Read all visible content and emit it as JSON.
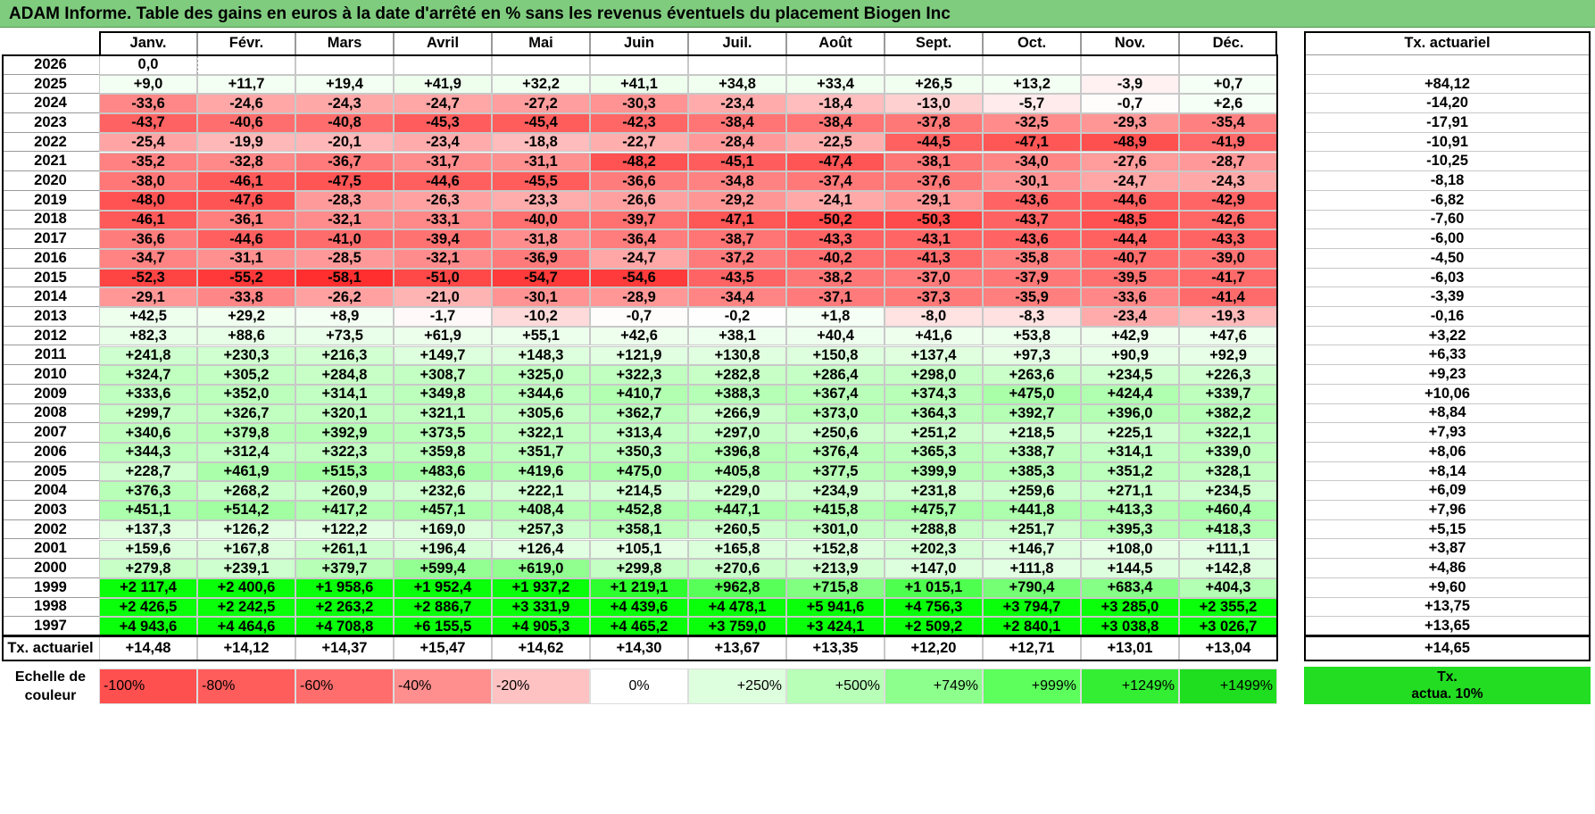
{
  "title": "ADAM Informe. Table des gains en euros à la date d'arrêté en % sans les revenus éventuels du placement Biogen Inc",
  "months": [
    "Janv.",
    "Févr.",
    "Mars",
    "Avril",
    "Mai",
    "Juin",
    "Juil.",
    "Août",
    "Sept.",
    "Oct.",
    "Nov.",
    "Déc."
  ],
  "rate_header": "Tx. actuariel",
  "rows": [
    {
      "year": "2026",
      "values": [
        "0,0",
        "",
        "",
        "",
        "",
        "",
        "",
        "",
        "",
        "",
        "",
        ""
      ],
      "rate": ""
    },
    {
      "year": "2025",
      "values": [
        "+9,0",
        "+11,7",
        "+19,4",
        "+41,9",
        "+32,2",
        "+41,1",
        "+34,8",
        "+33,4",
        "+26,5",
        "+13,2",
        "-3,9",
        "+0,7"
      ],
      "rate": "+84,12"
    },
    {
      "year": "2024",
      "values": [
        "-33,6",
        "-24,6",
        "-24,3",
        "-24,7",
        "-27,2",
        "-30,3",
        "-23,4",
        "-18,4",
        "-13,0",
        "-5,7",
        "-0,7",
        "+2,6"
      ],
      "rate": "-14,20"
    },
    {
      "year": "2023",
      "values": [
        "-43,7",
        "-40,6",
        "-40,8",
        "-45,3",
        "-45,4",
        "-42,3",
        "-38,4",
        "-38,4",
        "-37,8",
        "-32,5",
        "-29,3",
        "-35,4"
      ],
      "rate": "-17,91"
    },
    {
      "year": "2022",
      "values": [
        "-25,4",
        "-19,9",
        "-20,1",
        "-23,4",
        "-18,8",
        "-22,7",
        "-28,4",
        "-22,5",
        "-44,5",
        "-47,1",
        "-48,9",
        "-41,9"
      ],
      "rate": "-10,91"
    },
    {
      "year": "2021",
      "values": [
        "-35,2",
        "-32,8",
        "-36,7",
        "-31,7",
        "-31,1",
        "-48,2",
        "-45,1",
        "-47,4",
        "-38,1",
        "-34,0",
        "-27,6",
        "-28,7"
      ],
      "rate": "-10,25"
    },
    {
      "year": "2020",
      "values": [
        "-38,0",
        "-46,1",
        "-47,5",
        "-44,6",
        "-45,5",
        "-36,6",
        "-34,8",
        "-37,4",
        "-37,6",
        "-30,1",
        "-24,7",
        "-24,3"
      ],
      "rate": "-8,18"
    },
    {
      "year": "2019",
      "values": [
        "-48,0",
        "-47,6",
        "-28,3",
        "-26,3",
        "-23,3",
        "-26,6",
        "-29,2",
        "-24,1",
        "-29,1",
        "-43,6",
        "-44,6",
        "-42,9"
      ],
      "rate": "-6,82"
    },
    {
      "year": "2018",
      "values": [
        "-46,1",
        "-36,1",
        "-32,1",
        "-33,1",
        "-40,0",
        "-39,7",
        "-47,1",
        "-50,2",
        "-50,3",
        "-43,7",
        "-48,5",
        "-42,6"
      ],
      "rate": "-7,60"
    },
    {
      "year": "2017",
      "values": [
        "-36,6",
        "-44,6",
        "-41,0",
        "-39,4",
        "-31,8",
        "-36,4",
        "-38,7",
        "-43,3",
        "-43,1",
        "-43,6",
        "-44,4",
        "-43,3"
      ],
      "rate": "-6,00"
    },
    {
      "year": "2016",
      "values": [
        "-34,7",
        "-31,1",
        "-28,5",
        "-32,1",
        "-36,9",
        "-24,7",
        "-37,2",
        "-40,2",
        "-41,3",
        "-35,8",
        "-40,7",
        "-39,0"
      ],
      "rate": "-4,50"
    },
    {
      "year": "2015",
      "values": [
        "-52,3",
        "-55,2",
        "-58,1",
        "-51,0",
        "-54,7",
        "-54,6",
        "-43,5",
        "-38,2",
        "-37,0",
        "-37,9",
        "-39,5",
        "-41,7"
      ],
      "rate": "-6,03"
    },
    {
      "year": "2014",
      "values": [
        "-29,1",
        "-33,8",
        "-26,2",
        "-21,0",
        "-30,1",
        "-28,9",
        "-34,4",
        "-37,1",
        "-37,3",
        "-35,9",
        "-33,6",
        "-41,4"
      ],
      "rate": "-3,39"
    },
    {
      "year": "2013",
      "values": [
        "+42,5",
        "+29,2",
        "+8,9",
        "-1,7",
        "-10,2",
        "-0,7",
        "-0,2",
        "+1,8",
        "-8,0",
        "-8,3",
        "-23,4",
        "-19,3"
      ],
      "rate": "-0,16"
    },
    {
      "year": "2012",
      "values": [
        "+82,3",
        "+88,6",
        "+73,5",
        "+61,9",
        "+55,1",
        "+42,6",
        "+38,1",
        "+40,4",
        "+41,6",
        "+53,8",
        "+42,9",
        "+47,6"
      ],
      "rate": "+3,22"
    },
    {
      "year": "2011",
      "values": [
        "+241,8",
        "+230,3",
        "+216,3",
        "+149,7",
        "+148,3",
        "+121,9",
        "+130,8",
        "+150,8",
        "+137,4",
        "+97,3",
        "+90,9",
        "+92,9"
      ],
      "rate": "+6,33"
    },
    {
      "year": "2010",
      "values": [
        "+324,7",
        "+305,2",
        "+284,8",
        "+308,7",
        "+325,0",
        "+322,3",
        "+282,8",
        "+286,4",
        "+298,0",
        "+263,6",
        "+234,5",
        "+226,3"
      ],
      "rate": "+9,23"
    },
    {
      "year": "2009",
      "values": [
        "+333,6",
        "+352,0",
        "+314,1",
        "+349,8",
        "+344,6",
        "+410,7",
        "+388,3",
        "+367,4",
        "+374,3",
        "+475,0",
        "+424,4",
        "+339,7"
      ],
      "rate": "+10,06"
    },
    {
      "year": "2008",
      "values": [
        "+299,7",
        "+326,7",
        "+320,1",
        "+321,1",
        "+305,6",
        "+362,7",
        "+266,9",
        "+373,0",
        "+364,3",
        "+392,7",
        "+396,0",
        "+382,2"
      ],
      "rate": "+8,84"
    },
    {
      "year": "2007",
      "values": [
        "+340,6",
        "+379,8",
        "+392,9",
        "+373,5",
        "+322,1",
        "+313,4",
        "+297,0",
        "+250,6",
        "+251,2",
        "+218,5",
        "+225,1",
        "+322,1"
      ],
      "rate": "+7,93"
    },
    {
      "year": "2006",
      "values": [
        "+344,3",
        "+312,4",
        "+322,3",
        "+359,8",
        "+351,7",
        "+350,3",
        "+396,8",
        "+376,4",
        "+365,3",
        "+338,7",
        "+314,1",
        "+339,0"
      ],
      "rate": "+8,06"
    },
    {
      "year": "2005",
      "values": [
        "+228,7",
        "+461,9",
        "+515,3",
        "+483,6",
        "+419,6",
        "+475,0",
        "+405,8",
        "+377,5",
        "+399,9",
        "+385,3",
        "+351,2",
        "+328,1"
      ],
      "rate": "+8,14"
    },
    {
      "year": "2004",
      "values": [
        "+376,3",
        "+268,2",
        "+260,9",
        "+232,6",
        "+222,1",
        "+214,5",
        "+229,0",
        "+234,9",
        "+231,8",
        "+259,6",
        "+271,1",
        "+234,5"
      ],
      "rate": "+6,09"
    },
    {
      "year": "2003",
      "values": [
        "+451,1",
        "+514,2",
        "+417,2",
        "+457,1",
        "+408,4",
        "+452,8",
        "+447,1",
        "+415,8",
        "+475,7",
        "+441,8",
        "+413,3",
        "+460,4"
      ],
      "rate": "+7,96"
    },
    {
      "year": "2002",
      "values": [
        "+137,3",
        "+126,2",
        "+122,2",
        "+169,0",
        "+257,3",
        "+358,1",
        "+260,5",
        "+301,0",
        "+288,8",
        "+251,7",
        "+395,3",
        "+418,3"
      ],
      "rate": "+5,15"
    },
    {
      "year": "2001",
      "values": [
        "+159,6",
        "+167,8",
        "+261,1",
        "+196,4",
        "+126,4",
        "+105,1",
        "+165,8",
        "+152,8",
        "+202,3",
        "+146,7",
        "+108,0",
        "+111,1"
      ],
      "rate": "+3,87"
    },
    {
      "year": "2000",
      "values": [
        "+279,8",
        "+239,1",
        "+379,7",
        "+599,4",
        "+619,0",
        "+299,8",
        "+270,6",
        "+213,9",
        "+147,0",
        "+111,8",
        "+144,5",
        "+142,8"
      ],
      "rate": "+4,86"
    },
    {
      "year": "1999",
      "values": [
        "+2 117,4",
        "+2 400,6",
        "+1 958,6",
        "+1 952,4",
        "+1 937,2",
        "+1 219,1",
        "+962,8",
        "+715,8",
        "+1 015,1",
        "+790,4",
        "+683,4",
        "+404,3"
      ],
      "rate": "+9,60"
    },
    {
      "year": "1998",
      "values": [
        "+2 426,5",
        "+2 242,5",
        "+2 263,2",
        "+2 886,7",
        "+3 331,9",
        "+4 439,6",
        "+4 478,1",
        "+5 941,6",
        "+4 756,3",
        "+3 794,7",
        "+3 285,0",
        "+2 355,2"
      ],
      "rate": "+13,75"
    },
    {
      "year": "1997",
      "values": [
        "+4 943,6",
        "+4 464,6",
        "+4 708,8",
        "+6 155,5",
        "+4 905,3",
        "+4 465,2",
        "+3 759,0",
        "+3 424,1",
        "+2 509,2",
        "+2 840,1",
        "+3 038,8",
        "+3 026,7"
      ],
      "rate": "+13,65"
    }
  ],
  "footer": {
    "label": "Tx. actuariel",
    "values": [
      "+14,48",
      "+14,12",
      "+14,37",
      "+15,47",
      "+14,62",
      "+14,30",
      "+13,67",
      "+13,35",
      "+12,20",
      "+12,71",
      "+13,01",
      "+13,04"
    ],
    "total": "+14,65"
  },
  "legend": {
    "label_line1": "Echelle de",
    "label_line2": "couleur",
    "items": [
      {
        "text": "-100%",
        "color": "#ff5050"
      },
      {
        "text": "-80%",
        "color": "#ff5c5c"
      },
      {
        "text": "-60%",
        "color": "#ff6d6d"
      },
      {
        "text": "-40%",
        "color": "#ff8e8e"
      },
      {
        "text": "-20%",
        "color": "#ffc2c2"
      },
      {
        "text": "0%",
        "color": "#ffffff"
      },
      {
        "text": "+250%",
        "color": "#ddffdd"
      },
      {
        "text": "+500%",
        "color": "#b8ffb8"
      },
      {
        "text": "+749%",
        "color": "#8cff8c"
      },
      {
        "text": "+999%",
        "color": "#5cff5c"
      },
      {
        "text": "+1249%",
        "color": "#33ee33"
      },
      {
        "text": "+1499%",
        "color": "#1fdd1f"
      }
    ],
    "rate_line1": "Tx.",
    "rate_line2": "actua. 10%",
    "rate_color": "#22dd22"
  },
  "colors": {
    "title_bar": "#7fcc7f",
    "positive_scale": "green",
    "negative_scale": "red"
  }
}
